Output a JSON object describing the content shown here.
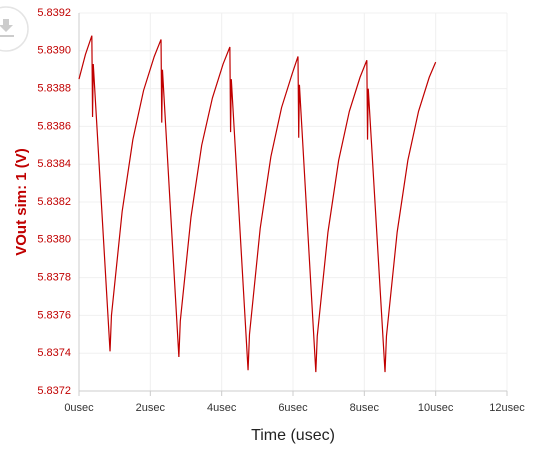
{
  "chart_data": {
    "type": "line",
    "y_label": "VOut sim: 1 (V)",
    "x_label": "Time (usec)",
    "xlim": [
      0,
      12
    ],
    "ylim": [
      5.8372,
      5.8392
    ],
    "xticks": [
      {
        "value": 0,
        "label": "0usec"
      },
      {
        "value": 2,
        "label": "2usec"
      },
      {
        "value": 4,
        "label": "4usec"
      },
      {
        "value": 6,
        "label": "6usec"
      },
      {
        "value": 8,
        "label": "8usec"
      },
      {
        "value": 10,
        "label": "10usec"
      },
      {
        "value": 12,
        "label": "12usec"
      }
    ],
    "yticks": [
      5.8372,
      5.8374,
      5.8376,
      5.8378,
      {
        "value": 5.838,
        "label": "5.8380"
      },
      5.8382,
      5.8384,
      5.8386,
      5.8388,
      {
        "value": 5.839,
        "label": "5.8390"
      },
      5.8392
    ],
    "grid": true,
    "series": [
      {
        "color": "#c00000",
        "x": [
          0,
          0.18,
          0.36,
          0.38,
          0.4,
          0.87,
          0.91,
          1.21,
          1.51,
          1.81,
          2.11,
          2.3,
          2.32,
          2.34,
          2.8,
          2.84,
          3.14,
          3.44,
          3.74,
          4.04,
          4.23,
          4.25,
          4.27,
          4.74,
          4.78,
          5.08,
          5.38,
          5.68,
          5.98,
          6.14,
          6.16,
          6.18,
          6.64,
          6.68,
          6.98,
          7.28,
          7.58,
          7.88,
          8.07,
          8.09,
          8.11,
          8.58,
          8.62,
          8.92,
          9.22,
          9.52,
          9.82,
          10.0
        ],
        "values": [
          5.83885,
          5.83898,
          5.83908,
          5.83865,
          5.83893,
          5.83741,
          5.8376,
          5.83815,
          5.83853,
          5.83879,
          5.83897,
          5.83906,
          5.83862,
          5.8389,
          5.83738,
          5.83757,
          5.83812,
          5.8385,
          5.83875,
          5.83893,
          5.83902,
          5.83857,
          5.83885,
          5.83731,
          5.8375,
          5.83806,
          5.83844,
          5.8387,
          5.83888,
          5.83897,
          5.83854,
          5.83882,
          5.8373,
          5.83749,
          5.83804,
          5.83842,
          5.83868,
          5.83886,
          5.83895,
          5.83853,
          5.8388,
          5.8373,
          5.83749,
          5.83804,
          5.83842,
          5.83868,
          5.83886,
          5.83894
        ]
      }
    ]
  }
}
